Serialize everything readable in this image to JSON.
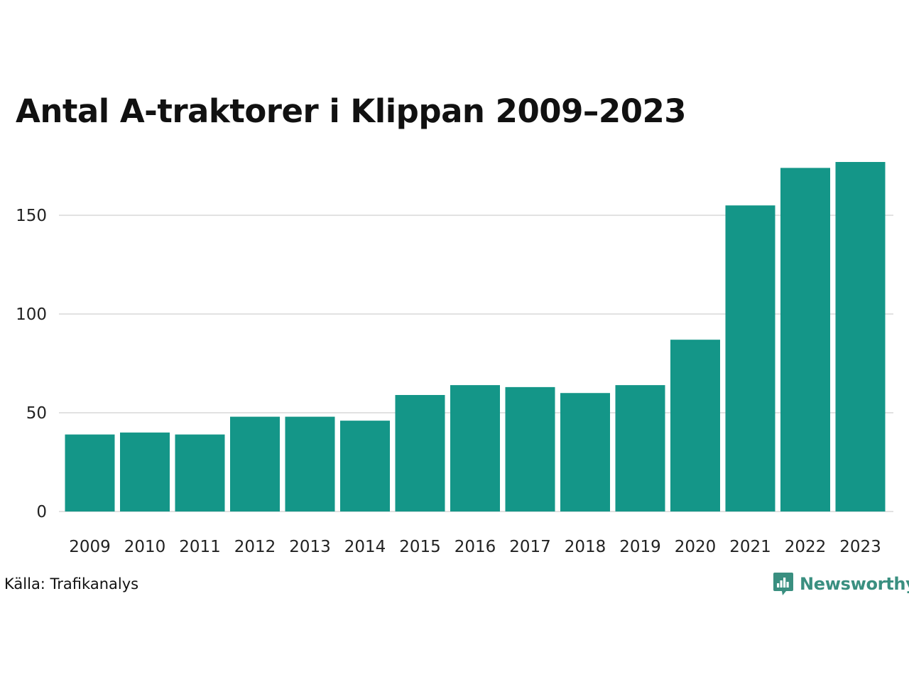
{
  "chart_data": {
    "type": "bar",
    "title": "Antal A-traktorer i Klippan 2009–2023",
    "categories": [
      "2009",
      "2010",
      "2011",
      "2012",
      "2013",
      "2014",
      "2015",
      "2016",
      "2017",
      "2018",
      "2019",
      "2020",
      "2021",
      "2022",
      "2023"
    ],
    "values": [
      39,
      40,
      39,
      48,
      48,
      46,
      59,
      64,
      63,
      60,
      64,
      87,
      155,
      174,
      177
    ],
    "xlabel": "",
    "ylabel": "",
    "ylim": [
      0,
      177
    ],
    "yticks": [
      0,
      50,
      100,
      150
    ],
    "grid": true,
    "bar_color": "#149688",
    "grid_color": "#e2e2e2"
  },
  "footer": {
    "source": "Källa: Trafikanalys",
    "brand": "Newsworthy",
    "brand_icon": "newsworthy-logo-icon",
    "brand_color": "#3a8f80"
  }
}
